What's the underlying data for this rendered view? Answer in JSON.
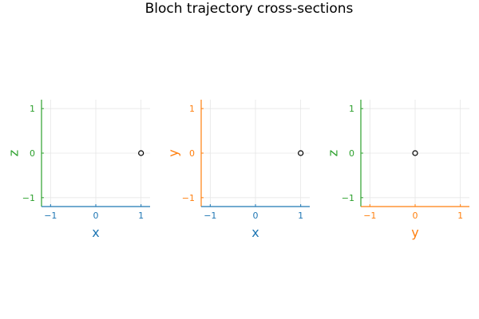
{
  "title": "Bloch trajectory cross-sections",
  "colors": {
    "x_axis": "#1f77b4",
    "y_axis": "#ff7f0e",
    "z_axis": "#2ca02c",
    "marker": "#000000",
    "grid": "#e6e6e6"
  },
  "chart_data": [
    {
      "type": "scatter",
      "xlabel": "x",
      "ylabel": "z",
      "xlim": [
        -1.2,
        1.2
      ],
      "ylim": [
        -1.2,
        1.2
      ],
      "xticks": [
        -1,
        0,
        1
      ],
      "yticks": [
        -1,
        0,
        1
      ],
      "grid": true,
      "x_color_key": "x_axis",
      "y_color_key": "z_axis",
      "points": [
        {
          "x": 1,
          "y": 0
        }
      ]
    },
    {
      "type": "scatter",
      "xlabel": "x",
      "ylabel": "y",
      "xlim": [
        -1.2,
        1.2
      ],
      "ylim": [
        -1.2,
        1.2
      ],
      "xticks": [
        -1,
        0,
        1
      ],
      "yticks": [
        -1,
        0,
        1
      ],
      "grid": true,
      "x_color_key": "x_axis",
      "y_color_key": "y_axis",
      "points": [
        {
          "x": 1,
          "y": 0
        }
      ]
    },
    {
      "type": "scatter",
      "xlabel": "y",
      "ylabel": "z",
      "xlim": [
        -1.2,
        1.2
      ],
      "ylim": [
        -1.2,
        1.2
      ],
      "xticks": [
        -1,
        0,
        1
      ],
      "yticks": [
        -1,
        0,
        1
      ],
      "grid": true,
      "x_color_key": "y_axis",
      "y_color_key": "z_axis",
      "points": [
        {
          "x": 0,
          "y": 0
        }
      ]
    }
  ]
}
